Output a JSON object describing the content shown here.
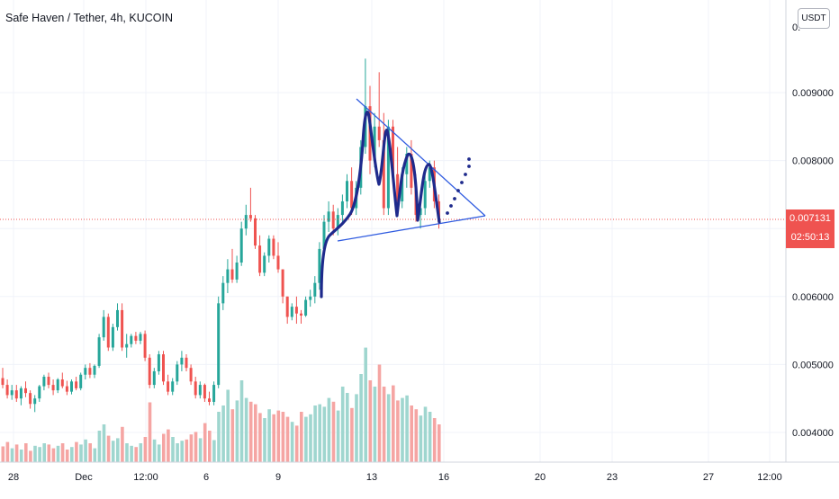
{
  "header": {
    "symbol_title": "Safe Haven / Tether, 4h, KUCOIN",
    "currency_button": "USDT",
    "top_partial_label": "0."
  },
  "current_price": {
    "value": "0.007131",
    "countdown": "02:50:13",
    "color": "#ef5350"
  },
  "colors": {
    "up": "#26a69a",
    "down": "#ef5350",
    "volume_up": "#9fd6cf",
    "volume_down": "#f5a5a3",
    "drawing_curve": "#1e2a8c",
    "trendline": "#2f5be0",
    "grid": "#f0f3fa",
    "axis_text": "#131722"
  },
  "chart_data": {
    "type": "candlestick",
    "title": "Safe Haven / Tether, 4h, KUCOIN",
    "quote_currency": "USDT",
    "ylim": [
      0.0036,
      0.0098
    ],
    "y_ticks": [
      "0.009000",
      "0.008000",
      "0.006000",
      "0.005000",
      "0.004000"
    ],
    "x_ticks": [
      "28",
      "Dec",
      "12:00",
      "6",
      "9",
      "13",
      "16",
      "20",
      "23",
      "27",
      "12:00"
    ],
    "last_price": 0.007131,
    "candles_ohlc": [
      [
        0.0048,
        0.00495,
        0.00465,
        0.0047
      ],
      [
        0.0047,
        0.00478,
        0.0045,
        0.00455
      ],
      [
        0.00455,
        0.0047,
        0.00448,
        0.00462
      ],
      [
        0.00462,
        0.0047,
        0.00445,
        0.0045
      ],
      [
        0.0045,
        0.00468,
        0.0044,
        0.00465
      ],
      [
        0.00465,
        0.00475,
        0.00452,
        0.00458
      ],
      [
        0.00458,
        0.00462,
        0.00435,
        0.00442
      ],
      [
        0.00442,
        0.00455,
        0.0043,
        0.0045
      ],
      [
        0.0045,
        0.0047,
        0.00445,
        0.00468
      ],
      [
        0.00468,
        0.00485,
        0.00462,
        0.00482
      ],
      [
        0.00482,
        0.00488,
        0.00465,
        0.0047
      ],
      [
        0.0047,
        0.00478,
        0.00455,
        0.00462
      ],
      [
        0.00462,
        0.0048,
        0.00458,
        0.00478
      ],
      [
        0.00478,
        0.00488,
        0.00465,
        0.00468
      ],
      [
        0.00468,
        0.00476,
        0.00455,
        0.0046
      ],
      [
        0.0046,
        0.00478,
        0.00456,
        0.00475
      ],
      [
        0.00475,
        0.00482,
        0.00462,
        0.00465
      ],
      [
        0.00465,
        0.00488,
        0.00462,
        0.00485
      ],
      [
        0.00485,
        0.005,
        0.00478,
        0.00495
      ],
      [
        0.00495,
        0.00502,
        0.0048,
        0.00485
      ],
      [
        0.00485,
        0.005,
        0.0048,
        0.00498
      ],
      [
        0.00498,
        0.00545,
        0.00495,
        0.0054
      ],
      [
        0.0054,
        0.0058,
        0.00535,
        0.0057
      ],
      [
        0.0057,
        0.00575,
        0.0052,
        0.00525
      ],
      [
        0.00525,
        0.0056,
        0.0052,
        0.00555
      ],
      [
        0.00555,
        0.0059,
        0.0055,
        0.0058
      ],
      [
        0.0058,
        0.0059,
        0.0052,
        0.00525
      ],
      [
        0.00525,
        0.00545,
        0.0051,
        0.0053
      ],
      [
        0.0053,
        0.00545,
        0.00525,
        0.00542
      ],
      [
        0.00542,
        0.00548,
        0.0053,
        0.00535
      ],
      [
        0.00535,
        0.00548,
        0.0053,
        0.00545
      ],
      [
        0.00545,
        0.0055,
        0.00505,
        0.0051
      ],
      [
        0.0051,
        0.00515,
        0.00465,
        0.0047
      ],
      [
        0.0047,
        0.00495,
        0.00465,
        0.0049
      ],
      [
        0.0049,
        0.0052,
        0.00485,
        0.00515
      ],
      [
        0.00515,
        0.0052,
        0.0047,
        0.00475
      ],
      [
        0.00475,
        0.00485,
        0.00455,
        0.0046
      ],
      [
        0.0046,
        0.0048,
        0.00455,
        0.00475
      ],
      [
        0.00475,
        0.00505,
        0.0047,
        0.005
      ],
      [
        0.005,
        0.0052,
        0.0049,
        0.0051
      ],
      [
        0.0051,
        0.00515,
        0.0049,
        0.00495
      ],
      [
        0.00495,
        0.005,
        0.0047,
        0.00475
      ],
      [
        0.00475,
        0.00482,
        0.0045,
        0.00455
      ],
      [
        0.00455,
        0.00475,
        0.0045,
        0.0047
      ],
      [
        0.0047,
        0.00472,
        0.00445,
        0.0045
      ],
      [
        0.0045,
        0.0046,
        0.0044,
        0.00445
      ],
      [
        0.00445,
        0.00475,
        0.0044,
        0.0047
      ],
      [
        0.0047,
        0.006,
        0.00465,
        0.0059
      ],
      [
        0.0059,
        0.0063,
        0.0058,
        0.0062
      ],
      [
        0.0062,
        0.00655,
        0.00605,
        0.0064
      ],
      [
        0.0064,
        0.0067,
        0.0062,
        0.00625
      ],
      [
        0.00625,
        0.0066,
        0.0062,
        0.0065
      ],
      [
        0.0065,
        0.0071,
        0.00645,
        0.007
      ],
      [
        0.007,
        0.00735,
        0.0069,
        0.0072
      ],
      [
        0.0072,
        0.0076,
        0.0071,
        0.00715
      ],
      [
        0.00715,
        0.0072,
        0.0067,
        0.00675
      ],
      [
        0.00675,
        0.0069,
        0.0063,
        0.00635
      ],
      [
        0.00635,
        0.00665,
        0.0063,
        0.0066
      ],
      [
        0.0066,
        0.0069,
        0.0065,
        0.00685
      ],
      [
        0.00685,
        0.0069,
        0.00655,
        0.0066
      ],
      [
        0.0066,
        0.0068,
        0.00635,
        0.0064
      ],
      [
        0.0064,
        0.0064,
        0.0059,
        0.006
      ],
      [
        0.006,
        0.006,
        0.0056,
        0.0057
      ],
      [
        0.0057,
        0.0059,
        0.00565,
        0.00585
      ],
      [
        0.00585,
        0.006,
        0.0056,
        0.00575
      ],
      [
        0.00575,
        0.0058,
        0.0056,
        0.00572
      ],
      [
        0.00572,
        0.006,
        0.0057,
        0.00595
      ],
      [
        0.00595,
        0.0061,
        0.00585,
        0.006
      ],
      [
        0.006,
        0.0063,
        0.0059,
        0.0062
      ],
      [
        0.0062,
        0.0068,
        0.0061,
        0.0067
      ],
      [
        0.0067,
        0.0072,
        0.0066,
        0.0071
      ],
      [
        0.0071,
        0.0074,
        0.00695,
        0.00725
      ],
      [
        0.00725,
        0.00735,
        0.0069,
        0.007
      ],
      [
        0.007,
        0.0073,
        0.0069,
        0.0072
      ],
      [
        0.0072,
        0.0075,
        0.0071,
        0.0074
      ],
      [
        0.0074,
        0.0078,
        0.0073,
        0.0077
      ],
      [
        0.0077,
        0.0079,
        0.0072,
        0.0073
      ],
      [
        0.0073,
        0.0077,
        0.0072,
        0.0076
      ],
      [
        0.0076,
        0.0083,
        0.0075,
        0.0082
      ],
      [
        0.0082,
        0.0095,
        0.0081,
        0.0088
      ],
      [
        0.0088,
        0.0091,
        0.0078,
        0.008
      ],
      [
        0.008,
        0.0087,
        0.0079,
        0.0085
      ],
      [
        0.0085,
        0.0093,
        0.0082,
        0.0083
      ],
      [
        0.0083,
        0.0087,
        0.0072,
        0.0073
      ],
      [
        0.0073,
        0.0086,
        0.0072,
        0.0085
      ],
      [
        0.0085,
        0.0086,
        0.0077,
        0.0078
      ],
      [
        0.0078,
        0.0082,
        0.0073,
        0.0074
      ],
      [
        0.0074,
        0.0079,
        0.0073,
        0.0078
      ],
      [
        0.0078,
        0.0082,
        0.0076,
        0.0081
      ],
      [
        0.0081,
        0.0083,
        0.0075,
        0.0076
      ],
      [
        0.0076,
        0.0078,
        0.0071,
        0.0072
      ],
      [
        0.0072,
        0.0074,
        0.007,
        0.0073
      ],
      [
        0.0073,
        0.0078,
        0.0072,
        0.0077
      ],
      [
        0.0077,
        0.008,
        0.0076,
        0.0079
      ],
      [
        0.0079,
        0.008,
        0.0073,
        0.0074
      ],
      [
        0.0074,
        0.0075,
        0.007,
        0.0071
      ]
    ],
    "volumes": [
      0.25,
      0.32,
      0.22,
      0.28,
      0.2,
      0.3,
      0.18,
      0.26,
      0.24,
      0.3,
      0.28,
      0.22,
      0.26,
      0.3,
      0.2,
      0.24,
      0.32,
      0.28,
      0.36,
      0.3,
      0.22,
      0.5,
      0.6,
      0.42,
      0.34,
      0.38,
      0.56,
      0.3,
      0.26,
      0.24,
      0.3,
      0.4,
      0.95,
      0.36,
      0.28,
      0.45,
      0.52,
      0.4,
      0.3,
      0.34,
      0.36,
      0.44,
      0.48,
      0.38,
      0.62,
      0.5,
      0.35,
      0.8,
      0.9,
      1.15,
      0.84,
      0.98,
      1.3,
      1.02,
      0.96,
      0.92,
      0.78,
      0.7,
      0.84,
      0.76,
      0.82,
      0.8,
      0.72,
      0.64,
      0.58,
      0.8,
      0.72,
      0.76,
      0.9,
      0.92,
      0.88,
      1.02,
      0.96,
      0.82,
      1.2,
      1.1,
      0.86,
      1.08,
      1.4,
      1.82,
      1.3,
      1.2,
      1.55,
      1.2,
      1.08,
      1.22,
      0.98,
      1.02,
      1.06,
      0.9,
      0.84,
      0.74,
      0.88,
      0.8,
      0.7,
      0.6
    ]
  }
}
